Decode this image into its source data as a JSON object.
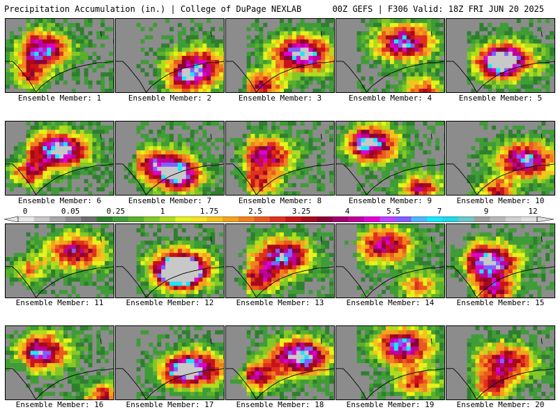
{
  "header": {
    "title_left": "Precipitation Accumulation (in.) | College of DuPage NEXLAB",
    "title_right": "00Z GEFS | F306 Valid: 18Z FRI JUN 20 2025"
  },
  "colorbar": {
    "tick_labels": [
      "0",
      "0.05",
      "0.25",
      "1",
      "1.75",
      "2.5",
      "3.25",
      "4",
      "5.5",
      "7",
      "9",
      "12"
    ],
    "colors": [
      "#e8e8e8",
      "#c8c8c8",
      "#a8a8a8",
      "#8c8c8c",
      "#6e6e6e",
      "#2f7f2f",
      "#3f9c37",
      "#5aaf2c",
      "#84c828",
      "#b0dc1c",
      "#e6f21a",
      "#f7e21a",
      "#f6c31c",
      "#f3a21e",
      "#f0801f",
      "#ea5a1f",
      "#e0301e",
      "#c81418",
      "#a8081a",
      "#8a0038",
      "#a1006e",
      "#c0009c",
      "#e000d0",
      "#c040ff",
      "#8060ff",
      "#4cb8ff",
      "#16e8ff",
      "#22d8e4",
      "#6ec8c8",
      "#a0a0a0",
      "#b8b8b8",
      "#d0d0d0",
      "#e0e0e0"
    ],
    "end_arrows": true
  },
  "panel_label_prefix": "Ensemble Member:",
  "members": [
    {
      "label": "Ensemble Member: 1"
    },
    {
      "label": "Ensemble Member: 2"
    },
    {
      "label": "Ensemble Member: 3"
    },
    {
      "label": "Ensemble Member: 4"
    },
    {
      "label": "Ensemble Member: 5"
    },
    {
      "label": "Ensemble Member: 6"
    },
    {
      "label": "Ensemble Member: 7"
    },
    {
      "label": "Ensemble Member: 8"
    },
    {
      "label": "Ensemble Member: 9"
    },
    {
      "label": "Ensemble Member: 10"
    },
    {
      "label": "Ensemble Member: 11"
    },
    {
      "label": "Ensemble Member: 12"
    },
    {
      "label": "Ensemble Member: 13"
    },
    {
      "label": "Ensemble Member: 14"
    },
    {
      "label": "Ensemble Member: 15"
    },
    {
      "label": "Ensemble Member: 16"
    },
    {
      "label": "Ensemble Member: 17"
    },
    {
      "label": "Ensemble Member: 18"
    },
    {
      "label": "Ensemble Member: 19"
    },
    {
      "label": "Ensemble Member: 20"
    }
  ]
}
